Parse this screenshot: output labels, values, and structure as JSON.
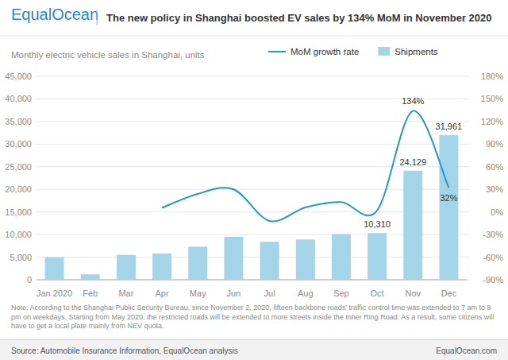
{
  "page": {
    "logo": "EqualOcean",
    "note": "Note: According to the Shanghai Public Security Bureau, since November 2, 2020, fifteen backbone roads' traffic control time was extended to 7 am to 8 pm on weekdays. Starting from May 2020, the restricted roads will be extended to more streets inside the Inner Ring Road. As a result, some citizens will have to get a local plate mainly from NEV quota.",
    "source": "Source: Automobile Insurance Information, EqualOcean analysis",
    "website": "EqualOcean.com"
  },
  "chart_data": {
    "type": "bar",
    "title": "The new policy in Shanghai boosted EV sales by 134% MoM in November 2020",
    "subtitle": "Monthly electric vehicle sales in Shanghai, units",
    "categories": [
      "Jan 2020",
      "Feb",
      "Mar",
      "Apr",
      "May",
      "Jun",
      "Jul",
      "Aug",
      "Sep",
      "Oct",
      "Nov",
      "Dec"
    ],
    "series": [
      {
        "name": "Shipments",
        "type": "bar",
        "color": "#a3d4e8",
        "values": [
          4950,
          1200,
          5500,
          5800,
          7300,
          9500,
          8400,
          8900,
          10100,
          10310,
          24129,
          31961
        ],
        "value_labels": [
          null,
          null,
          null,
          null,
          null,
          null,
          null,
          null,
          null,
          "10,310",
          "24,129",
          "31,961"
        ]
      },
      {
        "name": "MoM growth rate",
        "type": "line",
        "axis": "y2",
        "color": "#1f97d4",
        "values": [
          null,
          null,
          null,
          5.5,
          24,
          30,
          -12,
          6,
          13,
          2,
          134,
          32
        ],
        "value_labels": [
          null,
          null,
          null,
          null,
          null,
          null,
          null,
          null,
          null,
          null,
          "134%",
          "32%"
        ]
      }
    ],
    "ylim": [
      0,
      45000
    ],
    "yticks": [
      0,
      {
        "value": 5000,
        "label": "5,000"
      },
      {
        "value": 10000,
        "label": "10,000"
      },
      {
        "value": 15000,
        "label": "15,000"
      },
      {
        "value": 20000,
        "label": "20,000"
      },
      {
        "value": 25000,
        "label": "25,000"
      },
      {
        "value": 30000,
        "label": "30,000"
      },
      {
        "value": 35000,
        "label": "35,000"
      },
      {
        "value": 40000,
        "label": "40,000"
      },
      {
        "value": 45000,
        "label": "45,000"
      }
    ],
    "y2lim": [
      -90,
      180
    ],
    "y2ticks": [
      {
        "value": -90,
        "label": "-90%"
      },
      {
        "value": -60,
        "label": "-60%"
      },
      {
        "value": -30,
        "label": "-30%"
      },
      {
        "value": 0,
        "label": "0%"
      },
      {
        "value": 30,
        "label": "30%"
      },
      {
        "value": 60,
        "label": "60%"
      },
      {
        "value": 90,
        "label": "90%"
      },
      {
        "value": 120,
        "label": "120%"
      },
      {
        "value": 150,
        "label": "150%"
      },
      {
        "value": 180,
        "label": "180%"
      }
    ],
    "grid": true,
    "legend": "top",
    "data_labels": true
  }
}
